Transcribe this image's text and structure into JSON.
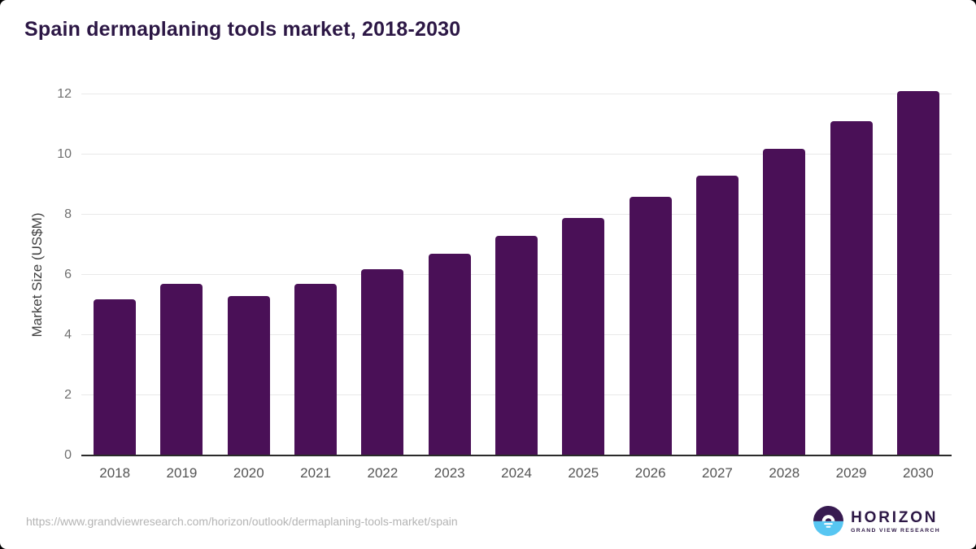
{
  "chart_data": {
    "type": "bar",
    "title": "Spain dermaplaning tools market, 2018-2030",
    "xlabel": "",
    "ylabel": "Market Size (US$M)",
    "categories": [
      "2018",
      "2019",
      "2020",
      "2021",
      "2022",
      "2023",
      "2024",
      "2025",
      "2026",
      "2027",
      "2028",
      "2029",
      "2030"
    ],
    "values": [
      5.2,
      5.7,
      5.3,
      5.7,
      6.2,
      6.7,
      7.3,
      7.9,
      8.6,
      9.3,
      10.2,
      11.1,
      12.1
    ],
    "ylim": [
      0,
      12
    ],
    "yticks": [
      0,
      2,
      4,
      6,
      8,
      10,
      12
    ],
    "grid": true,
    "legend": false,
    "bar_color": "#4a1057"
  },
  "colors": {
    "bar": "#4a1057",
    "title_purple": "#2c1745",
    "gridline": "#e9e9e9",
    "axis_line": "#2a2a2a",
    "tick_gray": "#6f6f6f",
    "logo_purple": "#371a50",
    "logo_blue": "#57c6f2"
  },
  "footer": {
    "url": "https://www.grandviewresearch.com/horizon/outlook/dermaplaning-tools-market/spain",
    "logo_name": "HORIZON",
    "logo_subtitle": "GRAND VIEW RESEARCH"
  }
}
